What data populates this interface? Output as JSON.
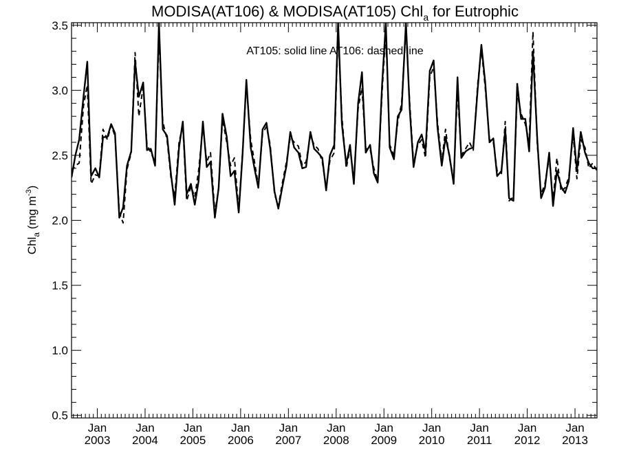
{
  "chart_data": {
    "type": "line",
    "title": {
      "main": "MODISA(AT106) & MODISA(AT105)  Chl",
      "sub": "a",
      "tail": " for Eutrophic"
    },
    "annotation": "AT105: solid line   AT106: dashed line",
    "ylabel": {
      "pre": "Chl",
      "sub": "a",
      "mid": " (mg m",
      "sup": "-3",
      "post": ")"
    },
    "ylim": [
      0.48,
      3.52
    ],
    "yticks": [
      0.5,
      1.0,
      1.5,
      2.0,
      2.5,
      3.0,
      3.5
    ],
    "ytick_labels": [
      "0.5",
      "1.0",
      "1.5",
      "2.0",
      "2.5",
      "3.0",
      "3.5"
    ],
    "xlim": [
      2002.46,
      2013.46
    ],
    "x_ticks": [
      {
        "x": 2003.0,
        "month": "Jan",
        "year": "2003"
      },
      {
        "x": 2004.0,
        "month": "Jan",
        "year": "2004"
      },
      {
        "x": 2005.0,
        "month": "Jan",
        "year": "2005"
      },
      {
        "x": 2006.0,
        "month": "Jan",
        "year": "2006"
      },
      {
        "x": 2007.0,
        "month": "Jan",
        "year": "2007"
      },
      {
        "x": 2008.0,
        "month": "Jan",
        "year": "2008"
      },
      {
        "x": 2009.0,
        "month": "Jan",
        "year": "2009"
      },
      {
        "x": 2010.0,
        "month": "Jan",
        "year": "2010"
      },
      {
        "x": 2011.0,
        "month": "Jan",
        "year": "2011"
      },
      {
        "x": 2012.0,
        "month": "Jan",
        "year": "2012"
      },
      {
        "x": 2013.0,
        "month": "Jan",
        "year": "2013"
      }
    ],
    "series": [
      {
        "name": "AT105",
        "style": "solid",
        "color": "#000000",
        "points": [
          [
            2002.46,
            2.33
          ],
          [
            2002.54,
            2.5
          ],
          [
            2002.62,
            2.62
          ],
          [
            2002.71,
            2.95
          ],
          [
            2002.79,
            3.22
          ],
          [
            2002.87,
            2.34
          ],
          [
            2002.96,
            2.4
          ],
          [
            2003.04,
            2.33
          ],
          [
            2003.12,
            2.64
          ],
          [
            2003.21,
            2.64
          ],
          [
            2003.29,
            2.74
          ],
          [
            2003.37,
            2.67
          ],
          [
            2003.46,
            2.02
          ],
          [
            2003.54,
            2.1
          ],
          [
            2003.62,
            2.42
          ],
          [
            2003.71,
            2.53
          ],
          [
            2003.79,
            3.22
          ],
          [
            2003.87,
            2.95
          ],
          [
            2003.96,
            3.06
          ],
          [
            2004.04,
            2.54
          ],
          [
            2004.12,
            2.55
          ],
          [
            2004.21,
            2.42
          ],
          [
            2004.29,
            3.52
          ],
          [
            2004.37,
            2.7
          ],
          [
            2004.46,
            2.65
          ],
          [
            2004.54,
            2.36
          ],
          [
            2004.62,
            2.12
          ],
          [
            2004.71,
            2.56
          ],
          [
            2004.79,
            2.76
          ],
          [
            2004.87,
            2.2
          ],
          [
            2004.96,
            2.28
          ],
          [
            2005.04,
            2.12
          ],
          [
            2005.12,
            2.3
          ],
          [
            2005.21,
            2.76
          ],
          [
            2005.29,
            2.41
          ],
          [
            2005.37,
            2.45
          ],
          [
            2005.46,
            2.02
          ],
          [
            2005.54,
            2.25
          ],
          [
            2005.62,
            2.82
          ],
          [
            2005.71,
            2.64
          ],
          [
            2005.79,
            2.34
          ],
          [
            2005.87,
            2.38
          ],
          [
            2005.96,
            2.06
          ],
          [
            2006.04,
            2.5
          ],
          [
            2006.12,
            3.08
          ],
          [
            2006.21,
            2.56
          ],
          [
            2006.29,
            2.4
          ],
          [
            2006.37,
            2.25
          ],
          [
            2006.46,
            2.7
          ],
          [
            2006.54,
            2.75
          ],
          [
            2006.62,
            2.55
          ],
          [
            2006.71,
            2.22
          ],
          [
            2006.79,
            2.09
          ],
          [
            2006.87,
            2.25
          ],
          [
            2006.96,
            2.42
          ],
          [
            2007.04,
            2.68
          ],
          [
            2007.12,
            2.56
          ],
          [
            2007.21,
            2.52
          ],
          [
            2007.29,
            2.4
          ],
          [
            2007.37,
            2.41
          ],
          [
            2007.46,
            2.68
          ],
          [
            2007.54,
            2.55
          ],
          [
            2007.62,
            2.52
          ],
          [
            2007.71,
            2.48
          ],
          [
            2007.79,
            2.23
          ],
          [
            2007.87,
            2.5
          ],
          [
            2007.96,
            2.58
          ],
          [
            2008.04,
            3.52
          ],
          [
            2008.12,
            2.74
          ],
          [
            2008.21,
            2.43
          ],
          [
            2008.29,
            2.58
          ],
          [
            2008.37,
            2.28
          ],
          [
            2008.46,
            2.9
          ],
          [
            2008.54,
            3.14
          ],
          [
            2008.62,
            2.52
          ],
          [
            2008.71,
            2.58
          ],
          [
            2008.79,
            2.36
          ],
          [
            2008.87,
            2.29
          ],
          [
            2008.96,
            3.04
          ],
          [
            2009.04,
            3.52
          ],
          [
            2009.12,
            2.56
          ],
          [
            2009.21,
            2.47
          ],
          [
            2009.29,
            2.8
          ],
          [
            2009.37,
            2.85
          ],
          [
            2009.46,
            3.52
          ],
          [
            2009.54,
            2.86
          ],
          [
            2009.62,
            2.41
          ],
          [
            2009.71,
            2.6
          ],
          [
            2009.79,
            2.66
          ],
          [
            2009.87,
            2.53
          ],
          [
            2009.96,
            3.15
          ],
          [
            2010.04,
            3.23
          ],
          [
            2010.12,
            2.72
          ],
          [
            2010.21,
            2.42
          ],
          [
            2010.29,
            2.64
          ],
          [
            2010.37,
            2.5
          ],
          [
            2010.46,
            2.28
          ],
          [
            2010.54,
            3.1
          ],
          [
            2010.62,
            2.48
          ],
          [
            2010.71,
            2.53
          ],
          [
            2010.79,
            2.55
          ],
          [
            2010.87,
            2.56
          ],
          [
            2010.96,
            3.0
          ],
          [
            2011.04,
            3.35
          ],
          [
            2011.12,
            3.06
          ],
          [
            2011.21,
            2.6
          ],
          [
            2011.29,
            2.63
          ],
          [
            2011.37,
            2.34
          ],
          [
            2011.46,
            2.38
          ],
          [
            2011.54,
            2.7
          ],
          [
            2011.62,
            2.17
          ],
          [
            2011.71,
            2.15
          ],
          [
            2011.79,
            3.05
          ],
          [
            2011.87,
            2.78
          ],
          [
            2011.96,
            2.78
          ],
          [
            2012.04,
            2.53
          ],
          [
            2012.12,
            3.3
          ],
          [
            2012.21,
            2.62
          ],
          [
            2012.29,
            2.17
          ],
          [
            2012.37,
            2.25
          ],
          [
            2012.46,
            2.52
          ],
          [
            2012.54,
            2.11
          ],
          [
            2012.62,
            2.38
          ],
          [
            2012.71,
            2.26
          ],
          [
            2012.79,
            2.21
          ],
          [
            2012.87,
            2.3
          ],
          [
            2012.96,
            2.71
          ],
          [
            2013.04,
            2.38
          ],
          [
            2013.12,
            2.68
          ],
          [
            2013.21,
            2.52
          ],
          [
            2013.29,
            2.44
          ],
          [
            2013.37,
            2.4
          ],
          [
            2013.46,
            2.4
          ]
        ]
      },
      {
        "name": "AT106",
        "style": "dashed",
        "color": "#000000",
        "points": [
          [
            2002.46,
            2.38
          ],
          [
            2002.54,
            2.42
          ],
          [
            2002.62,
            2.44
          ],
          [
            2002.71,
            2.88
          ],
          [
            2002.79,
            3.04
          ],
          [
            2002.87,
            2.28
          ],
          [
            2002.96,
            2.35
          ],
          [
            2003.04,
            2.34
          ],
          [
            2003.12,
            2.7
          ],
          [
            2003.21,
            2.62
          ],
          [
            2003.29,
            2.73
          ],
          [
            2003.37,
            2.65
          ],
          [
            2003.46,
            2.06
          ],
          [
            2003.54,
            1.98
          ],
          [
            2003.62,
            2.39
          ],
          [
            2003.71,
            2.52
          ],
          [
            2003.79,
            3.29
          ],
          [
            2003.87,
            2.8
          ],
          [
            2003.96,
            3.03
          ],
          [
            2004.04,
            2.58
          ],
          [
            2004.12,
            2.52
          ],
          [
            2004.21,
            2.45
          ],
          [
            2004.29,
            3.42
          ],
          [
            2004.37,
            2.76
          ],
          [
            2004.46,
            2.62
          ],
          [
            2004.54,
            2.33
          ],
          [
            2004.62,
            2.18
          ],
          [
            2004.71,
            2.6
          ],
          [
            2004.79,
            2.73
          ],
          [
            2004.87,
            2.15
          ],
          [
            2004.96,
            2.26
          ],
          [
            2005.04,
            2.18
          ],
          [
            2005.12,
            2.38
          ],
          [
            2005.21,
            2.72
          ],
          [
            2005.29,
            2.45
          ],
          [
            2005.37,
            2.52
          ],
          [
            2005.46,
            2.06
          ],
          [
            2005.54,
            2.24
          ],
          [
            2005.62,
            2.78
          ],
          [
            2005.71,
            2.6
          ],
          [
            2005.79,
            2.42
          ],
          [
            2005.87,
            2.48
          ],
          [
            2005.96,
            2.08
          ],
          [
            2006.04,
            2.52
          ],
          [
            2006.12,
            3.04
          ],
          [
            2006.21,
            2.62
          ],
          [
            2006.29,
            2.45
          ],
          [
            2006.37,
            2.27
          ],
          [
            2006.46,
            2.67
          ],
          [
            2006.54,
            2.72
          ],
          [
            2006.62,
            2.58
          ],
          [
            2006.71,
            2.2
          ],
          [
            2006.79,
            2.11
          ],
          [
            2006.87,
            2.28
          ],
          [
            2006.96,
            2.45
          ],
          [
            2007.04,
            2.64
          ],
          [
            2007.12,
            2.6
          ],
          [
            2007.21,
            2.57
          ],
          [
            2007.29,
            2.42
          ],
          [
            2007.37,
            2.45
          ],
          [
            2007.46,
            2.65
          ],
          [
            2007.54,
            2.58
          ],
          [
            2007.62,
            2.55
          ],
          [
            2007.71,
            2.45
          ],
          [
            2007.79,
            2.25
          ],
          [
            2007.87,
            2.46
          ],
          [
            2007.96,
            2.52
          ],
          [
            2008.04,
            3.48
          ],
          [
            2008.12,
            2.8
          ],
          [
            2008.21,
            2.4
          ],
          [
            2008.29,
            2.55
          ],
          [
            2008.37,
            2.32
          ],
          [
            2008.46,
            2.86
          ],
          [
            2008.54,
            3.02
          ],
          [
            2008.62,
            2.55
          ],
          [
            2008.71,
            2.55
          ],
          [
            2008.79,
            2.4
          ],
          [
            2008.87,
            2.3
          ],
          [
            2008.96,
            2.98
          ],
          [
            2009.04,
            3.46
          ],
          [
            2009.12,
            2.58
          ],
          [
            2009.21,
            2.5
          ],
          [
            2009.29,
            2.76
          ],
          [
            2009.37,
            2.9
          ],
          [
            2009.46,
            3.48
          ],
          [
            2009.54,
            2.9
          ],
          [
            2009.62,
            2.44
          ],
          [
            2009.71,
            2.58
          ],
          [
            2009.79,
            2.62
          ],
          [
            2009.87,
            2.48
          ],
          [
            2009.96,
            3.1
          ],
          [
            2010.04,
            3.18
          ],
          [
            2010.12,
            2.76
          ],
          [
            2010.21,
            2.45
          ],
          [
            2010.29,
            2.7
          ],
          [
            2010.37,
            2.48
          ],
          [
            2010.46,
            2.32
          ],
          [
            2010.54,
            3.0
          ],
          [
            2010.62,
            2.5
          ],
          [
            2010.71,
            2.55
          ],
          [
            2010.79,
            2.6
          ],
          [
            2010.87,
            2.54
          ],
          [
            2010.96,
            3.04
          ],
          [
            2011.04,
            3.32
          ],
          [
            2011.12,
            3.02
          ],
          [
            2011.21,
            2.62
          ],
          [
            2011.29,
            2.6
          ],
          [
            2011.37,
            2.38
          ],
          [
            2011.46,
            2.36
          ],
          [
            2011.54,
            2.76
          ],
          [
            2011.62,
            2.15
          ],
          [
            2011.71,
            2.18
          ],
          [
            2011.79,
            2.98
          ],
          [
            2011.87,
            2.82
          ],
          [
            2011.96,
            2.74
          ],
          [
            2012.04,
            2.6
          ],
          [
            2012.12,
            3.45
          ],
          [
            2012.21,
            2.58
          ],
          [
            2012.29,
            2.2
          ],
          [
            2012.37,
            2.28
          ],
          [
            2012.46,
            2.48
          ],
          [
            2012.54,
            2.15
          ],
          [
            2012.62,
            2.48
          ],
          [
            2012.71,
            2.22
          ],
          [
            2012.79,
            2.25
          ],
          [
            2012.87,
            2.33
          ],
          [
            2012.96,
            2.66
          ],
          [
            2013.04,
            2.32
          ],
          [
            2013.12,
            2.62
          ],
          [
            2013.21,
            2.56
          ],
          [
            2013.29,
            2.4
          ],
          [
            2013.37,
            2.44
          ],
          [
            2013.46,
            2.38
          ]
        ]
      }
    ],
    "grid": false,
    "legend_position": "top-center"
  }
}
